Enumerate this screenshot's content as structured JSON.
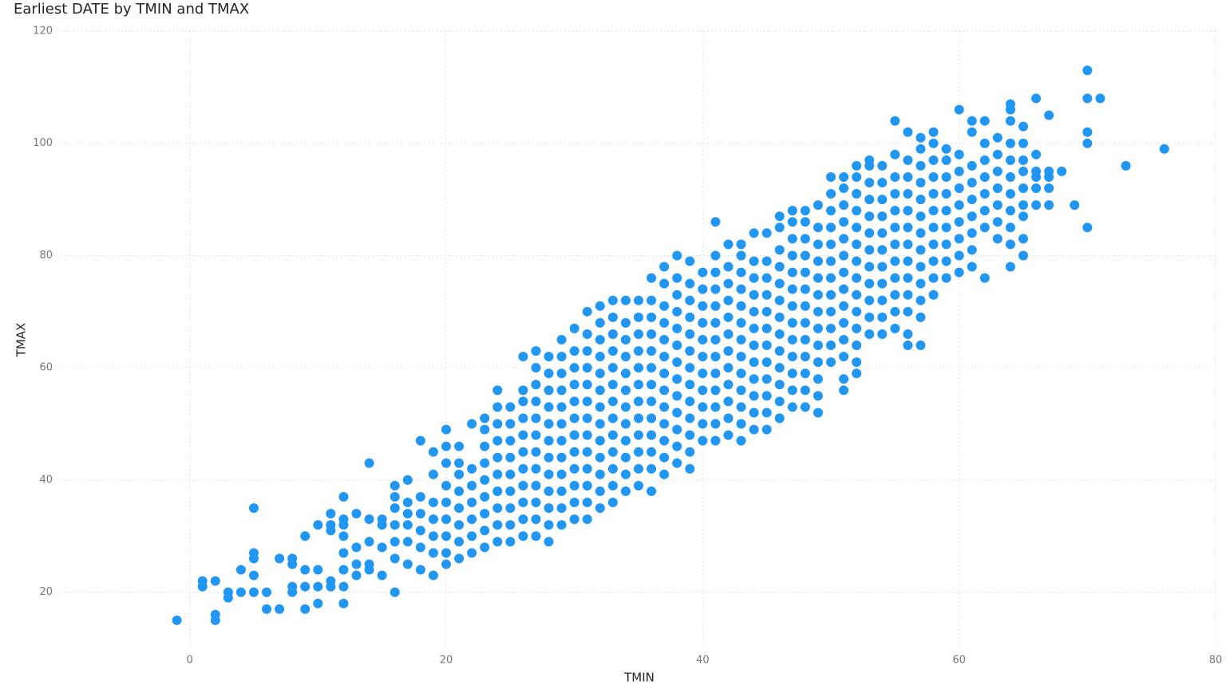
{
  "chart_data": {
    "type": "scatter",
    "title": "Earliest DATE by TMIN and TMAX",
    "x_label": "TMIN",
    "y_label": "TMAX",
    "color": "#2196f3",
    "grid": true,
    "xlim": [
      -10,
      80
    ],
    "xticks": [
      0,
      20,
      40,
      60,
      80
    ],
    "ylim": [
      10,
      120
    ],
    "yticks": [
      20,
      40,
      60,
      80,
      100,
      120
    ],
    "x": [
      -1,
      1,
      1,
      2,
      2,
      2,
      3,
      3,
      4,
      4,
      5,
      5,
      5,
      5,
      5,
      6,
      6,
      7,
      7,
      8,
      8,
      8,
      8,
      9,
      9,
      9,
      9,
      10,
      10,
      10,
      10,
      11,
      11,
      11,
      11,
      11,
      12,
      12,
      12,
      12,
      12,
      12,
      12,
      12,
      13,
      13,
      13,
      13,
      14,
      14,
      14,
      14,
      14,
      15,
      15,
      15,
      15,
      16,
      16,
      16,
      16,
      16,
      16,
      16,
      17,
      17,
      17,
      17,
      17,
      17,
      18,
      18,
      18,
      18,
      18,
      18,
      19,
      19,
      19,
      19,
      19,
      19,
      19,
      20,
      20,
      20,
      20,
      20,
      20,
      20,
      20,
      20,
      21,
      21,
      21,
      21,
      21,
      21,
      21,
      21,
      22,
      22,
      22,
      22,
      22,
      22,
      22,
      23,
      23,
      23,
      23,
      23,
      23,
      23,
      23,
      23,
      24,
      24,
      24,
      24,
      24,
      24,
      24,
      24,
      24,
      24,
      25,
      25,
      25,
      25,
      25,
      25,
      25,
      25,
      25,
      26,
      26,
      26,
      26,
      26,
      26,
      26,
      26,
      26,
      26,
      26,
      27,
      27,
      27,
      27,
      27,
      27,
      27,
      27,
      27,
      27,
      27,
      27,
      28,
      28,
      28,
      28,
      28,
      28,
      28,
      28,
      28,
      28,
      28,
      28,
      29,
      29,
      29,
      29,
      29,
      29,
      29,
      29,
      29,
      29,
      29,
      29,
      30,
      30,
      30,
      30,
      30,
      30,
      30,
      30,
      30,
      30,
      30,
      30,
      31,
      31,
      31,
      31,
      31,
      31,
      31,
      31,
      31,
      31,
      31,
      31,
      31,
      32,
      32,
      32,
      32,
      32,
      32,
      32,
      32,
      32,
      32,
      32,
      32,
      32,
      33,
      33,
      33,
      33,
      33,
      33,
      33,
      33,
      33,
      33,
      33,
      33,
      33,
      34,
      34,
      34,
      34,
      34,
      34,
      34,
      34,
      34,
      34,
      34,
      34,
      35,
      35,
      35,
      35,
      35,
      35,
      35,
      35,
      35,
      35,
      35,
      35,
      36,
      36,
      36,
      36,
      36,
      36,
      36,
      36,
      36,
      36,
      36,
      36,
      36,
      37,
      37,
      37,
      37,
      37,
      37,
      37,
      37,
      37,
      37,
      37,
      37,
      37,
      38,
      38,
      38,
      38,
      38,
      38,
      38,
      38,
      38,
      38,
      38,
      38,
      38,
      39,
      39,
      39,
      39,
      39,
      39,
      39,
      39,
      39,
      39,
      39,
      39,
      39,
      40,
      40,
      40,
      40,
      40,
      40,
      40,
      40,
      40,
      40,
      40,
      41,
      41,
      41,
      41,
      41,
      41,
      41,
      41,
      41,
      41,
      41,
      41,
      41,
      42,
      42,
      42,
      42,
      42,
      42,
      42,
      42,
      42,
      42,
      42,
      42,
      43,
      43,
      43,
      43,
      43,
      43,
      43,
      43,
      43,
      43,
      43,
      43,
      43,
      44,
      44,
      44,
      44,
      44,
      44,
      44,
      44,
      44,
      44,
      44,
      44,
      45,
      45,
      45,
      45,
      45,
      45,
      45,
      45,
      45,
      45,
      45,
      45,
      46,
      46,
      46,
      46,
      46,
      46,
      46,
      46,
      46,
      46,
      46,
      46,
      46,
      47,
      47,
      47,
      47,
      47,
      47,
      47,
      47,
      47,
      47,
      47,
      47,
      47,
      48,
      48,
      48,
      48,
      48,
      48,
      48,
      48,
      48,
      48,
      48,
      48,
      48,
      49,
      49,
      49,
      49,
      49,
      49,
      49,
      49,
      49,
      49,
      49,
      49,
      49,
      50,
      50,
      50,
      50,
      50,
      50,
      50,
      50,
      50,
      50,
      50,
      50,
      51,
      51,
      51,
      51,
      51,
      51,
      51,
      51,
      51,
      51,
      51,
      51,
      51,
      51,
      52,
      52,
      52,
      52,
      52,
      52,
      52,
      52,
      52,
      52,
      52,
      52,
      52,
      52,
      53,
      53,
      53,
      53,
      53,
      53,
      53,
      53,
      53,
      53,
      53,
      53,
      54,
      54,
      54,
      54,
      54,
      54,
      54,
      54,
      54,
      54,
      54,
      55,
      55,
      55,
      55,
      55,
      55,
      55,
      55,
      55,
      55,
      55,
      55,
      56,
      56,
      56,
      56,
      56,
      56,
      56,
      56,
      56,
      56,
      56,
      56,
      56,
      57,
      57,
      57,
      57,
      57,
      57,
      57,
      57,
      57,
      57,
      57,
      57,
      57,
      58,
      58,
      58,
      58,
      58,
      58,
      58,
      58,
      58,
      58,
      58,
      59,
      59,
      59,
      59,
      59,
      59,
      59,
      59,
      59,
      60,
      60,
      60,
      60,
      60,
      60,
      60,
      60,
      60,
      61,
      61,
      61,
      61,
      61,
      61,
      61,
      61,
      61,
      62,
      62,
      62,
      62,
      62,
      62,
      62,
      62,
      63,
      63,
      63,
      63,
      63,
      63,
      63,
      64,
      64,
      64,
      64,
      64,
      64,
      64,
      64,
      64,
      64,
      64,
      65,
      65,
      65,
      65,
      65,
      65,
      65,
      65,
      65,
      66,
      66,
      66,
      66,
      66,
      66,
      67,
      67,
      67,
      67,
      67,
      68,
      69,
      70,
      70,
      70,
      70,
      70,
      71,
      73,
      76
    ],
    "values": [
      15,
      21,
      22,
      15,
      16,
      22,
      19,
      20,
      20,
      24,
      20,
      23,
      26,
      27,
      35,
      17,
      20,
      17,
      26,
      20,
      21,
      25,
      26,
      17,
      21,
      24,
      30,
      18,
      21,
      24,
      32,
      21,
      22,
      31,
      32,
      34,
      18,
      21,
      24,
      27,
      30,
      32,
      33,
      37,
      23,
      25,
      28,
      34,
      24,
      25,
      29,
      33,
      43,
      23,
      28,
      32,
      33,
      20,
      26,
      29,
      32,
      35,
      37,
      39,
      25,
      29,
      32,
      34,
      36,
      40,
      24,
      28,
      31,
      34,
      37,
      47,
      23,
      27,
      30,
      33,
      36,
      41,
      45,
      25,
      27,
      30,
      33,
      36,
      39,
      43,
      46,
      49,
      26,
      29,
      32,
      35,
      38,
      41,
      43,
      46,
      27,
      30,
      33,
      36,
      39,
      42,
      50,
      28,
      31,
      34,
      37,
      40,
      43,
      46,
      49,
      51,
      29,
      32,
      35,
      38,
      41,
      44,
      47,
      50,
      53,
      56,
      29,
      32,
      35,
      38,
      41,
      44,
      47,
      50,
      53,
      30,
      33,
      36,
      39,
      42,
      45,
      48,
      51,
      54,
      56,
      62,
      30,
      33,
      36,
      39,
      42,
      45,
      48,
      51,
      54,
      57,
      60,
      63,
      29,
      32,
      35,
      38,
      41,
      44,
      47,
      50,
      53,
      56,
      59,
      62,
      32,
      35,
      38,
      41,
      44,
      47,
      50,
      53,
      56,
      59,
      62,
      65,
      33,
      36,
      39,
      42,
      45,
      48,
      51,
      54,
      57,
      60,
      63,
      67,
      33,
      36,
      39,
      42,
      45,
      48,
      51,
      54,
      57,
      60,
      63,
      66,
      70,
      35,
      38,
      41,
      44,
      47,
      50,
      53,
      56,
      59,
      62,
      65,
      68,
      71,
      36,
      39,
      42,
      45,
      48,
      51,
      54,
      57,
      60,
      63,
      66,
      69,
      72,
      38,
      41,
      44,
      47,
      50,
      53,
      56,
      59,
      62,
      65,
      68,
      72,
      39,
      42,
      45,
      48,
      51,
      54,
      57,
      60,
      63,
      66,
      69,
      72,
      38,
      42,
      45,
      48,
      51,
      54,
      57,
      60,
      63,
      66,
      69,
      72,
      76,
      41,
      44,
      47,
      50,
      53,
      56,
      59,
      62,
      65,
      68,
      71,
      75,
      78,
      43,
      46,
      49,
      52,
      55,
      58,
      61,
      64,
      67,
      70,
      73,
      76,
      80,
      42,
      45,
      48,
      51,
      54,
      57,
      60,
      63,
      66,
      69,
      72,
      75,
      79,
      47,
      50,
      53,
      56,
      59,
      62,
      65,
      68,
      71,
      74,
      77,
      47,
      50,
      53,
      56,
      59,
      62,
      65,
      68,
      71,
      74,
      77,
      80,
      86,
      48,
      51,
      54,
      57,
      60,
      63,
      66,
      69,
      72,
      75,
      78,
      82,
      47,
      50,
      53,
      56,
      59,
      62,
      65,
      68,
      71,
      74,
      77,
      80,
      82,
      49,
      52,
      55,
      58,
      61,
      64,
      67,
      70,
      73,
      76,
      79,
      84,
      49,
      52,
      55,
      58,
      61,
      64,
      67,
      70,
      73,
      76,
      79,
      84,
      51,
      54,
      57,
      60,
      63,
      66,
      69,
      72,
      75,
      78,
      81,
      85,
      87,
      53,
      56,
      59,
      62,
      65,
      68,
      71,
      74,
      77,
      80,
      83,
      86,
      88,
      53,
      56,
      59,
      62,
      65,
      68,
      71,
      74,
      77,
      80,
      83,
      86,
      88,
      52,
      55,
      58,
      61,
      64,
      67,
      70,
      73,
      76,
      79,
      82,
      85,
      89,
      61,
      64,
      67,
      70,
      73,
      76,
      79,
      82,
      85,
      88,
      91,
      94,
      56,
      58,
      62,
      65,
      68,
      71,
      74,
      77,
      80,
      83,
      86,
      89,
      92,
      94,
      59,
      61,
      64,
      67,
      70,
      73,
      76,
      79,
      82,
      85,
      88,
      91,
      94,
      96,
      66,
      69,
      72,
      75,
      78,
      81,
      84,
      87,
      90,
      93,
      96,
      97,
      66,
      69,
      72,
      75,
      78,
      81,
      84,
      87,
      90,
      93,
      96,
      67,
      70,
      73,
      76,
      79,
      82,
      85,
      88,
      91,
      94,
      98,
      104,
      64,
      66,
      70,
      73,
      76,
      79,
      82,
      85,
      88,
      91,
      94,
      97,
      102,
      64,
      69,
      72,
      75,
      78,
      81,
      84,
      87,
      90,
      93,
      96,
      99,
      101,
      73,
      76,
      79,
      82,
      85,
      88,
      91,
      94,
      97,
      100,
      102,
      76,
      79,
      82,
      85,
      88,
      91,
      94,
      97,
      99,
      77,
      80,
      83,
      86,
      89,
      92,
      95,
      98,
      106,
      78,
      81,
      84,
      87,
      90,
      93,
      96,
      102,
      104,
      76,
      85,
      88,
      91,
      94,
      97,
      100,
      104,
      83,
      86,
      89,
      92,
      95,
      98,
      101,
      78,
      82,
      85,
      88,
      91,
      94,
      97,
      100,
      104,
      106,
      107,
      80,
      83,
      87,
      89,
      92,
      95,
      97,
      100,
      103,
      89,
      92,
      94,
      95,
      98,
      108,
      89,
      92,
      94,
      95,
      105,
      95,
      89,
      85,
      100,
      102,
      108,
      113,
      108,
      96,
      99
    ]
  }
}
